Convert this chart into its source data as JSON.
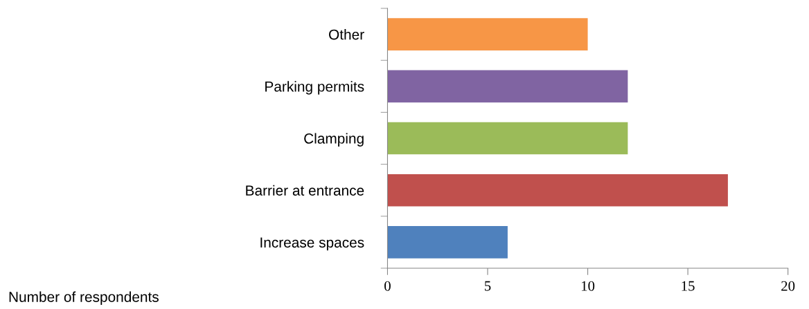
{
  "chart_data": {
    "type": "bar",
    "orientation": "horizontal",
    "categories": [
      "Other",
      "Parking permits",
      "Clamping",
      "Barrier at entrance",
      "Increase spaces"
    ],
    "values": [
      10,
      12,
      12,
      17,
      6
    ],
    "colors": [
      "#f79646",
      "#8064a2",
      "#9bbb59",
      "#c0504d",
      "#4f81bd"
    ],
    "annotations": [
      "Number of respondents"
    ],
    "xlim": [
      0,
      20
    ],
    "xticks": [
      0,
      5,
      10,
      15,
      20
    ],
    "grid": false,
    "legend": false
  }
}
